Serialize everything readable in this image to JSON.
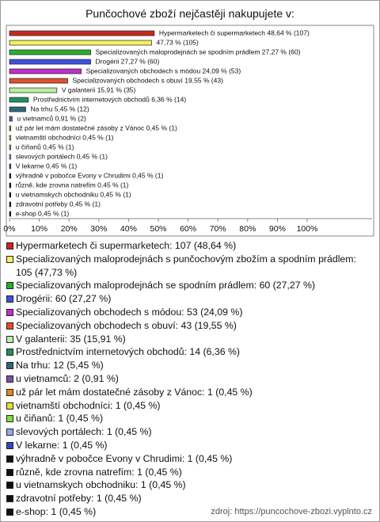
{
  "chart_data": {
    "type": "bar",
    "orientation": "horizontal",
    "title": "Punčochové zboží nejčastěji nakupujete v:",
    "categories": [
      "Hypermarketech či supermarketech",
      "Specializovaných maloprodejnách s punčochovým zbožím a spodním prádlem",
      "Specializovaných maloprodejnách se spodním prádlem",
      "Drogérii",
      "Specializovaných obchodech s módou",
      "Specializovaných obchodech s obuví",
      "V galanterii",
      "Prostřednictvím internetových obchodů",
      "Na trhu",
      "u vietnamců",
      "už pár let mám dostatečné zásoby z Vánoc",
      "vietnamští obchodníci",
      "u číňanů",
      "slevových portálech",
      "V lekarne",
      "výhradně v pobočce Evony v Chrudimi",
      "různě, kde zrovna natrefím",
      "u vietnamskych obchodniku",
      "zdravotní potřeby",
      "e-shop"
    ],
    "values": [
      48.64,
      47.73,
      27.27,
      27.27,
      24.09,
      19.55,
      15.91,
      6.36,
      5.45,
      0.91,
      0.45,
      0.45,
      0.45,
      0.45,
      0.45,
      0.45,
      0.45,
      0.45,
      0.45,
      0.45
    ],
    "value_labels": [
      "Hypermarketech či supermarketech 48,64 % (107)",
      "47,73 % (105)",
      "Specializovaných maloprodejnách se spodním prádlem 27,27 % (60)",
      "Drogérii 27,27 % (60)",
      "Specializovaných obchodech s módou 24,09 % (53)",
      "Specializovaných obchodech s obuví 19,55 % (43)",
      "V galanterii 15,91 % (35)",
      "Prostřednictvím internetových obchodů 6,36 % (14)",
      "Na trhu 5,45 % (12)",
      "u vietnamců 0,91 % (2)",
      "už pár let mám dostatečné zásoby z Vánoc 0,45 % (1)",
      "vietnamští obchodníci 0,45 % (1)",
      "u čiňanů 0,45 % (1)",
      "slevových portálech 0,45 % (1)",
      "V lekarne 0,45 % (1)",
      "výhradně v pobočce Evony v Chrudimi 0,45 % (1)",
      "různě, kde zrovna natrefím 0,45 % (1)",
      "u vietnamskych obchodniku 0,45 % (1)",
      "zdravotní potřeby 0,45 % (1)",
      "e-shop 0,45 % (1)"
    ],
    "legend_labels": [
      "Hypermarketech či supermarketech: 107 (48,64 %)",
      "Specializovaných maloprodejnách s punčochovým zbožím a spodním prádlem: 105 (47,73 %)",
      "Specializovaných maloprodejnách se spodním prádlem: 60 (27,27 %)",
      "Drogérii: 60 (27,27 %)",
      "Specializovaných obchodech s módou: 53 (24,09 %)",
      "Specializovaných obchodech s obuví: 43 (19,55 %)",
      "V galanterii: 35 (15,91 %)",
      "Prostřednictvím internetových obchodů: 14 (6,36 %)",
      "Na trhu: 12 (5,45 %)",
      "u vietnamců: 2 (0,91 %)",
      "už pár let mám dostatečné zásoby z Vánoc: 1 (0,45 %)",
      "vietnamští obchodníci: 1 (0,45 %)",
      "u čiňanů: 1 (0,45 %)",
      "slevových portálech: 1 (0,45 %)",
      "V lekarne: 1 (0,45 %)",
      "výhradně v pobočce Evony v Chrudimi: 1 (0,45 %)",
      "různě, kde zrovna natrefím: 1 (0,45 %)",
      "u vietnamskych obchodniku: 1 (0,45 %)",
      "zdravotní potřeby: 1 (0,45 %)",
      "e-shop: 1 (0,45 %)"
    ],
    "colors": [
      "#c8281e",
      "#f4f060",
      "#28b028",
      "#4050e0",
      "#c030c8",
      "#e0502c",
      "#b8f0a0",
      "#209060",
      "#2c6878",
      "#7850a8",
      "#e08828",
      "#e0e040",
      "#80e040",
      "#98a8e8",
      "#3048c0",
      "#111111",
      "#111111",
      "#111111",
      "#111111",
      "#111111"
    ],
    "xlim": [
      0,
      100
    ],
    "xticks": [
      {
        "value": 0,
        "label": "0%"
      },
      {
        "value": 10,
        "label": "10%"
      },
      {
        "value": 20,
        "label": "20%"
      },
      {
        "value": 30,
        "label": "30%"
      },
      {
        "value": 40,
        "label": "40%"
      },
      {
        "value": 50,
        "label": "50%"
      },
      {
        "value": 60,
        "label": "60%"
      },
      {
        "value": 70,
        "label": "70%"
      },
      {
        "value": 80,
        "label": "80%"
      },
      {
        "value": 90,
        "label": "90%"
      },
      {
        "value": 100,
        "label": "100%"
      }
    ],
    "grid": false,
    "source": "zdroj: https://puncochove-zbozi.vyplnto.cz"
  }
}
